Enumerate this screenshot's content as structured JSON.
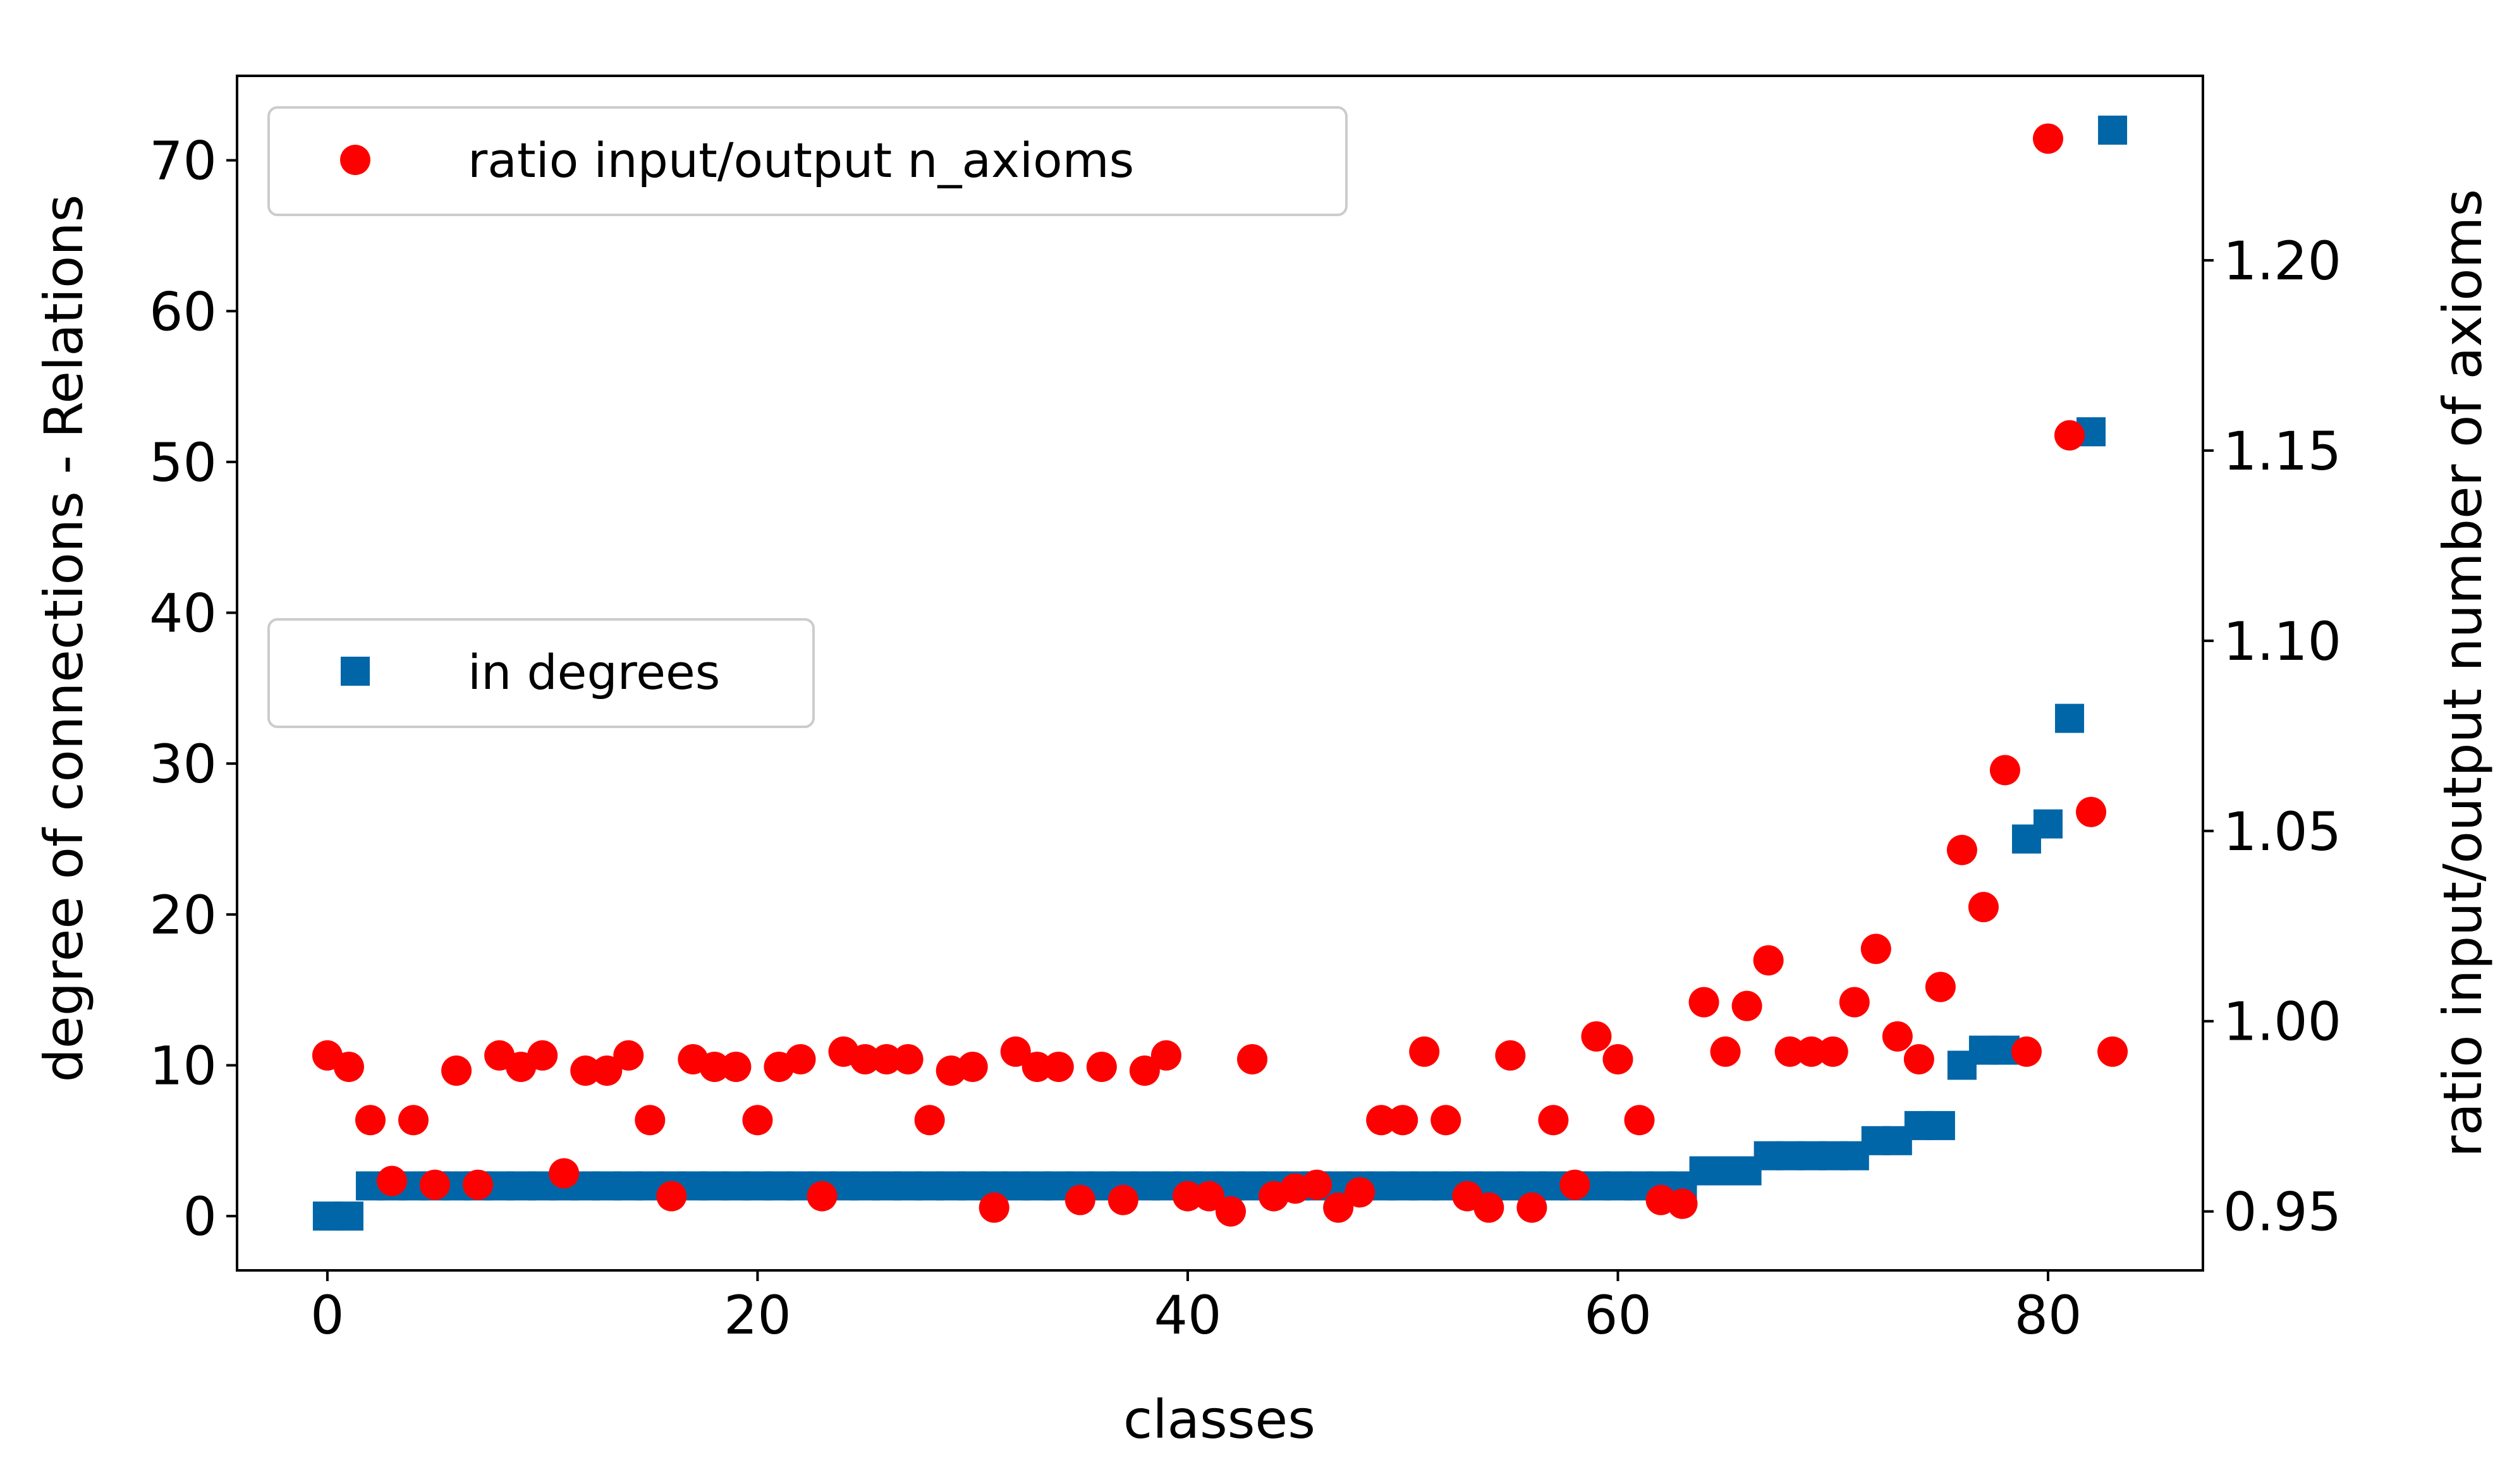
{
  "chart_data": {
    "type": "scatter",
    "xlabel": "classes",
    "ylabel": "degree of connections - Relations",
    "y2label": "ratio input/output number of axioms",
    "xlim": [
      -4.2,
      87.2
    ],
    "ylim": [
      -3.6,
      75.6
    ],
    "y2lim": [
      0.9345,
      1.2485
    ],
    "x_ticks": [
      0,
      20,
      40,
      60,
      80
    ],
    "y_ticks": [
      0,
      10,
      20,
      30,
      40,
      50,
      60,
      70
    ],
    "y2_ticks": [
      0.95,
      1.0,
      1.05,
      1.1,
      1.15,
      1.2
    ],
    "y2_tick_labels": [
      "0.95",
      "1.00",
      "1.05",
      "1.10",
      "1.15",
      "1.20"
    ],
    "grid": false,
    "series": [
      {
        "name": "in degrees",
        "axis": "left",
        "marker": "square",
        "color": "#0066a8",
        "legend_position": "center-left",
        "x": [
          0,
          1,
          2,
          3,
          4,
          5,
          6,
          7,
          8,
          9,
          10,
          11,
          12,
          13,
          14,
          15,
          16,
          17,
          18,
          19,
          20,
          21,
          22,
          23,
          24,
          25,
          26,
          27,
          28,
          29,
          30,
          31,
          32,
          33,
          34,
          35,
          36,
          37,
          38,
          39,
          40,
          41,
          42,
          43,
          44,
          45,
          46,
          47,
          48,
          49,
          50,
          51,
          52,
          53,
          54,
          55,
          56,
          57,
          58,
          59,
          60,
          61,
          62,
          63,
          64,
          65,
          66,
          67,
          68,
          69,
          70,
          71,
          72,
          73,
          74,
          75,
          76,
          77,
          78,
          79,
          80,
          81,
          82,
          83
        ],
        "y": [
          0,
          0,
          2,
          2,
          2,
          2,
          2,
          2,
          2,
          2,
          2,
          2,
          2,
          2,
          2,
          2,
          2,
          2,
          2,
          2,
          2,
          2,
          2,
          2,
          2,
          2,
          2,
          2,
          2,
          2,
          2,
          2,
          2,
          2,
          2,
          2,
          2,
          2,
          2,
          2,
          2,
          2,
          2,
          2,
          2,
          2,
          2,
          2,
          2,
          2,
          2,
          2,
          2,
          2,
          2,
          2,
          2,
          2,
          2,
          2,
          2,
          2,
          2,
          2,
          3,
          3,
          3,
          4,
          4,
          4,
          4,
          4,
          5,
          5,
          6,
          6,
          10,
          11,
          11,
          25,
          26,
          33,
          52,
          72
        ]
      },
      {
        "name": "ratio input/output n_axioms",
        "axis": "right",
        "marker": "circle",
        "color": "#ff0000",
        "legend_position": "upper-left",
        "x": [
          0,
          1,
          2,
          3,
          4,
          5,
          6,
          7,
          8,
          9,
          10,
          11,
          12,
          13,
          14,
          15,
          16,
          17,
          18,
          19,
          20,
          21,
          22,
          23,
          24,
          25,
          26,
          27,
          28,
          29,
          30,
          31,
          32,
          33,
          34,
          35,
          36,
          37,
          38,
          39,
          40,
          41,
          42,
          43,
          44,
          45,
          46,
          47,
          48,
          49,
          50,
          51,
          52,
          53,
          54,
          55,
          56,
          57,
          58,
          59,
          60,
          61,
          62,
          63,
          64,
          65,
          66,
          67,
          68,
          69,
          70,
          71,
          72,
          73,
          74,
          75,
          76,
          77,
          78,
          79,
          80,
          81,
          82,
          83
        ],
        "y": [
          0.991,
          0.988,
          0.974,
          0.958,
          0.974,
          0.957,
          0.987,
          0.957,
          0.991,
          0.988,
          0.991,
          0.96,
          0.987,
          0.987,
          0.991,
          0.974,
          0.954,
          0.99,
          0.988,
          0.988,
          0.974,
          0.988,
          0.99,
          0.954,
          0.992,
          0.99,
          0.99,
          0.99,
          0.974,
          0.987,
          0.988,
          0.951,
          0.992,
          0.988,
          0.988,
          0.953,
          0.988,
          0.953,
          0.987,
          0.991,
          0.954,
          0.954,
          0.95,
          0.99,
          0.954,
          0.956,
          0.957,
          0.951,
          0.955,
          0.974,
          0.974,
          0.992,
          0.974,
          0.954,
          0.951,
          0.991,
          0.951,
          0.974,
          0.957,
          0.996,
          0.99,
          0.974,
          0.953,
          0.952,
          1.005,
          0.992,
          1.004,
          1.016,
          0.992,
          0.992,
          0.992,
          1.005,
          1.019,
          0.996,
          0.99,
          1.009,
          1.045,
          1.03,
          1.066,
          0.992,
          1.232,
          1.154,
          1.055,
          0.992
        ]
      }
    ]
  }
}
